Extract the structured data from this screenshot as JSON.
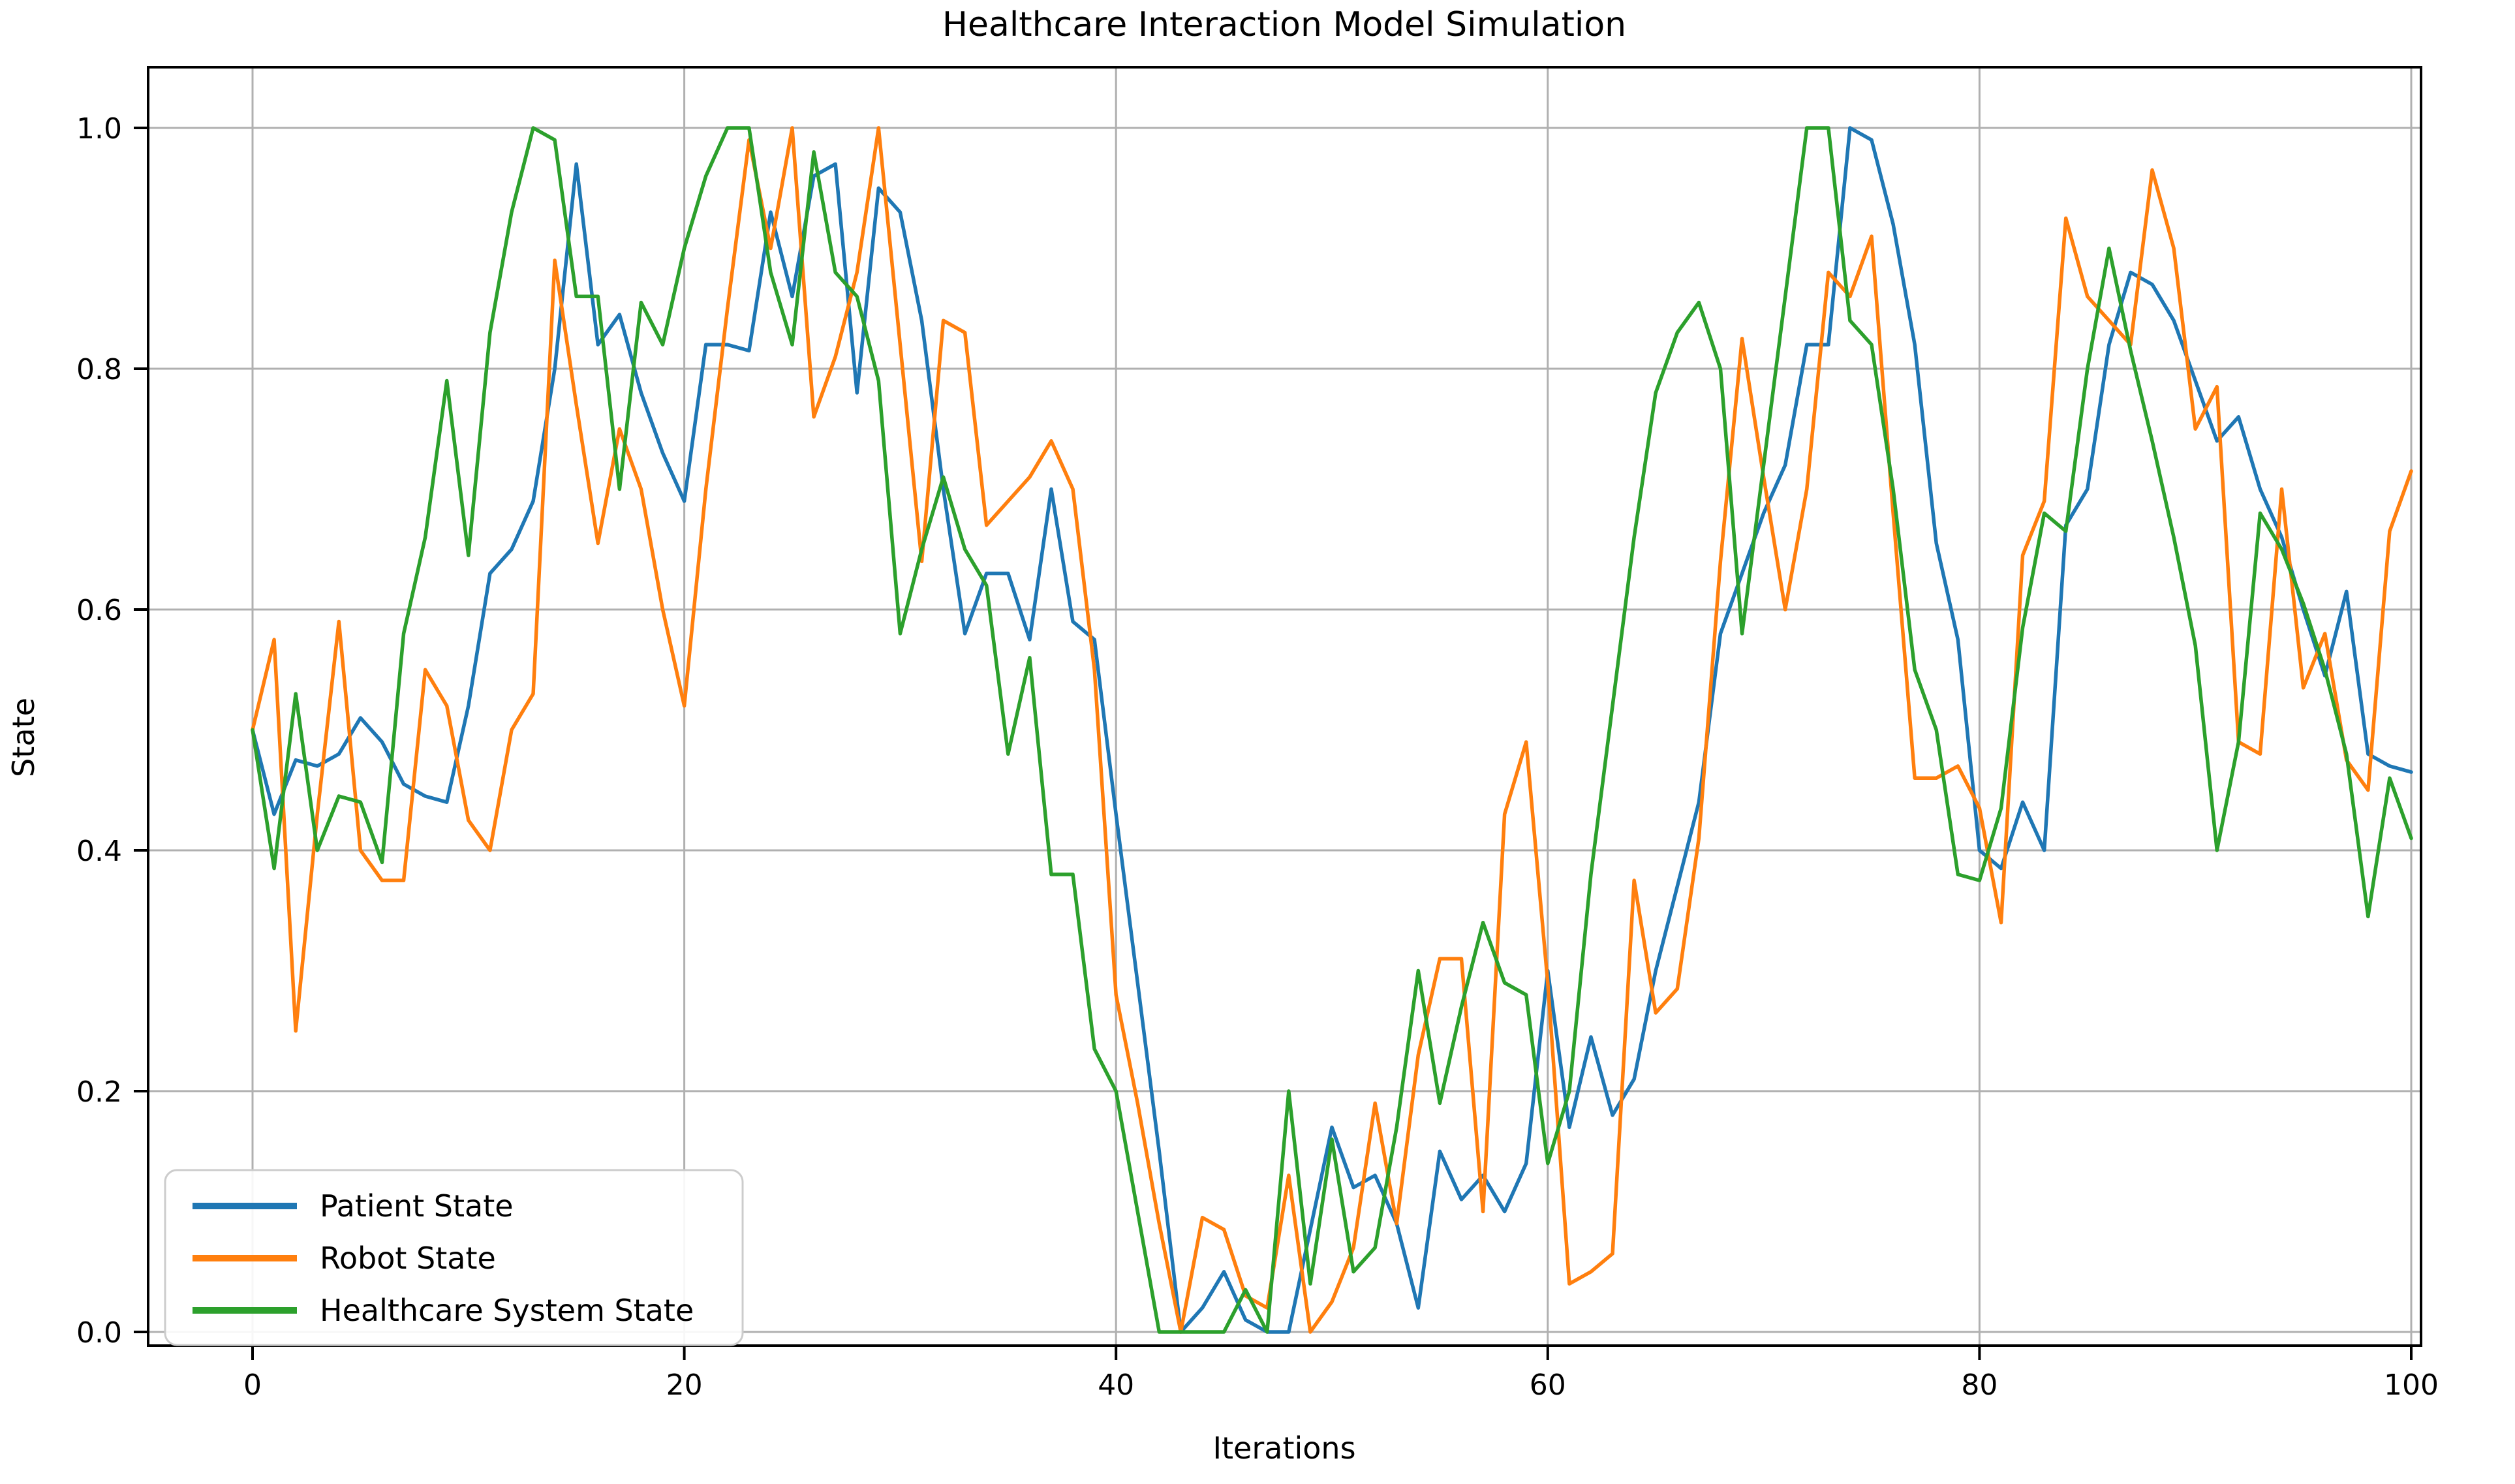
{
  "chart_data": {
    "type": "line",
    "title": "Healthcare Interaction Model Simulation",
    "xlabel": "Iterations",
    "ylabel": "State",
    "x_ticks": [
      0,
      20,
      40,
      60,
      80,
      100
    ],
    "y_ticks": [
      "0.0",
      "0.2",
      "0.4",
      "0.6",
      "0.8",
      "1.0"
    ],
    "xlim": [
      -4.8,
      101.9
    ],
    "ylim": [
      -0.05,
      1.05
    ],
    "grid": true,
    "legend_position": "lower-left",
    "background_color": "#ffffff",
    "grid_color": "#b0b0b0",
    "spine_color": "#000000",
    "x": [
      0,
      1,
      2,
      3,
      4,
      5,
      6,
      7,
      8,
      9,
      10,
      11,
      12,
      13,
      14,
      15,
      16,
      17,
      18,
      19,
      20,
      21,
      22,
      23,
      24,
      25,
      26,
      27,
      28,
      29,
      30,
      31,
      32,
      33,
      34,
      35,
      36,
      37,
      38,
      39,
      40,
      41,
      42,
      43,
      44,
      45,
      46,
      47,
      48,
      49,
      50,
      51,
      52,
      53,
      54,
      55,
      56,
      57,
      58,
      59,
      60,
      61,
      62,
      63,
      64,
      65,
      66,
      67,
      68,
      69,
      70,
      71,
      72,
      73,
      74,
      75,
      76,
      77,
      78,
      79,
      80,
      81,
      82,
      83,
      84,
      85,
      86,
      87,
      88,
      89,
      90,
      91,
      92,
      93,
      94,
      95,
      96,
      97,
      98,
      99,
      100
    ],
    "series": [
      {
        "name": "Patient State",
        "color": "#1f77b4",
        "values": [
          0.5,
          0.43,
          0.475,
          0.47,
          0.48,
          0.51,
          0.49,
          0.455,
          0.445,
          0.44,
          0.52,
          0.63,
          0.65,
          0.69,
          0.8,
          0.97,
          0.82,
          0.845,
          0.78,
          0.73,
          0.69,
          0.82,
          0.82,
          0.815,
          0.93,
          0.86,
          0.96,
          0.97,
          0.78,
          0.95,
          0.93,
          0.84,
          0.7,
          0.58,
          0.63,
          0.63,
          0.575,
          0.7,
          0.59,
          0.575,
          0.43,
          0.29,
          0.15,
          0.0,
          0.02,
          0.05,
          0.01,
          0.0,
          0.0,
          0.085,
          0.17,
          0.12,
          0.13,
          0.09,
          0.02,
          0.15,
          0.11,
          0.13,
          0.1,
          0.14,
          0.3,
          0.17,
          0.245,
          0.18,
          0.21,
          0.3,
          0.37,
          0.44,
          0.58,
          0.63,
          0.68,
          0.72,
          0.82,
          0.82,
          1.0,
          0.99,
          0.92,
          0.82,
          0.655,
          0.575,
          0.4,
          0.385,
          0.44,
          0.4,
          0.67,
          0.7,
          0.82,
          0.88,
          0.87,
          0.84,
          0.79,
          0.74,
          0.76,
          0.7,
          0.66,
          0.6,
          0.545,
          0.615,
          0.48,
          0.47,
          0.465
        ]
      },
      {
        "name": "Robot State",
        "color": "#ff7f0e",
        "values": [
          0.5,
          0.575,
          0.25,
          0.43,
          0.59,
          0.4,
          0.375,
          0.375,
          0.55,
          0.52,
          0.425,
          0.4,
          0.5,
          0.53,
          0.89,
          0.77,
          0.655,
          0.75,
          0.7,
          0.6,
          0.52,
          0.7,
          0.85,
          0.99,
          0.9,
          1.0,
          0.76,
          0.81,
          0.88,
          1.0,
          0.82,
          0.64,
          0.84,
          0.83,
          0.67,
          0.69,
          0.71,
          0.74,
          0.7,
          0.55,
          0.28,
          0.19,
          0.09,
          0.0,
          0.095,
          0.085,
          0.03,
          0.02,
          0.13,
          0.0,
          0.025,
          0.07,
          0.19,
          0.09,
          0.23,
          0.31,
          0.31,
          0.1,
          0.43,
          0.49,
          0.29,
          0.04,
          0.05,
          0.065,
          0.375,
          0.265,
          0.285,
          0.41,
          0.64,
          0.825,
          0.71,
          0.6,
          0.7,
          0.88,
          0.86,
          0.91,
          0.68,
          0.46,
          0.46,
          0.47,
          0.435,
          0.34,
          0.645,
          0.69,
          0.925,
          0.86,
          0.84,
          0.82,
          0.965,
          0.9,
          0.75,
          0.785,
          0.49,
          0.48,
          0.7,
          0.535,
          0.58,
          0.475,
          0.45,
          0.665,
          0.715
        ]
      },
      {
        "name": "Healthcare System State",
        "color": "#2ca02c",
        "values": [
          0.5,
          0.385,
          0.53,
          0.4,
          0.445,
          0.44,
          0.39,
          0.58,
          0.66,
          0.79,
          0.645,
          0.83,
          0.93,
          1.0,
          0.99,
          0.86,
          0.86,
          0.7,
          0.855,
          0.82,
          0.9,
          0.96,
          1.0,
          1.0,
          0.88,
          0.82,
          0.98,
          0.88,
          0.86,
          0.79,
          0.58,
          0.65,
          0.71,
          0.65,
          0.62,
          0.48,
          0.56,
          0.38,
          0.38,
          0.235,
          0.2,
          0.1,
          0.0,
          0.0,
          0.0,
          0.0,
          0.035,
          0.0,
          0.2,
          0.04,
          0.16,
          0.05,
          0.07,
          0.17,
          0.3,
          0.19,
          0.27,
          0.34,
          0.29,
          0.28,
          0.14,
          0.2,
          0.38,
          0.52,
          0.66,
          0.78,
          0.83,
          0.855,
          0.8,
          0.58,
          0.72,
          0.86,
          1.0,
          1.0,
          0.84,
          0.82,
          0.7,
          0.55,
          0.5,
          0.38,
          0.375,
          0.435,
          0.585,
          0.68,
          0.665,
          0.8,
          0.9,
          0.815,
          0.74,
          0.66,
          0.57,
          0.4,
          0.49,
          0.68,
          0.65,
          0.605,
          0.55,
          0.48,
          0.345,
          0.46,
          0.41
        ]
      }
    ]
  }
}
